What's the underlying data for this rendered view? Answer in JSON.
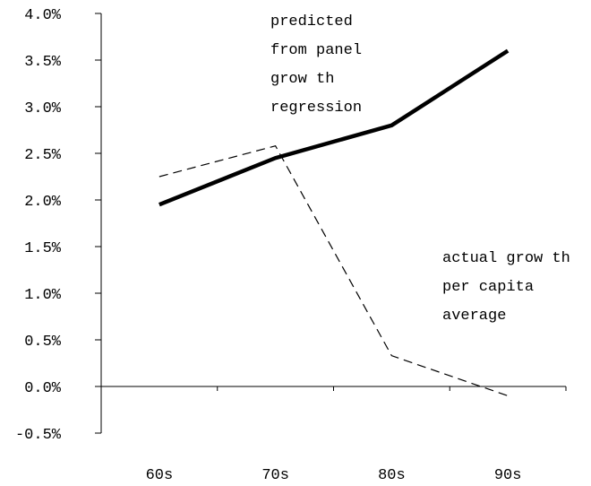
{
  "chart_data": {
    "type": "line",
    "categories": [
      "60s",
      "70s",
      "80s",
      "90s"
    ],
    "yticks": [
      "4.0%",
      "3.5%",
      "3.0%",
      "2.5%",
      "2.0%",
      "1.5%",
      "1.0%",
      "0.5%",
      "0.0%",
      "-0.5%"
    ],
    "ylim": [
      -0.5,
      4.0
    ],
    "series": [
      {
        "key": "predicted",
        "style": "solid-thick",
        "color": "#000000",
        "values": [
          1.95,
          2.45,
          2.8,
          3.6
        ]
      },
      {
        "key": "actual",
        "style": "dashed",
        "color": "#000000",
        "values": [
          2.25,
          2.58,
          0.33,
          -0.1
        ]
      }
    ],
    "annotations": [
      {
        "series": "predicted",
        "lines": [
          "predicted",
          "from panel",
          "grow th",
          "regression"
        ]
      },
      {
        "series": "actual",
        "lines": [
          "actual grow th",
          "per capita",
          "average"
        ]
      }
    ],
    "title": "",
    "xlabel": "",
    "ylabel": "",
    "grid": false,
    "legend": "none"
  }
}
